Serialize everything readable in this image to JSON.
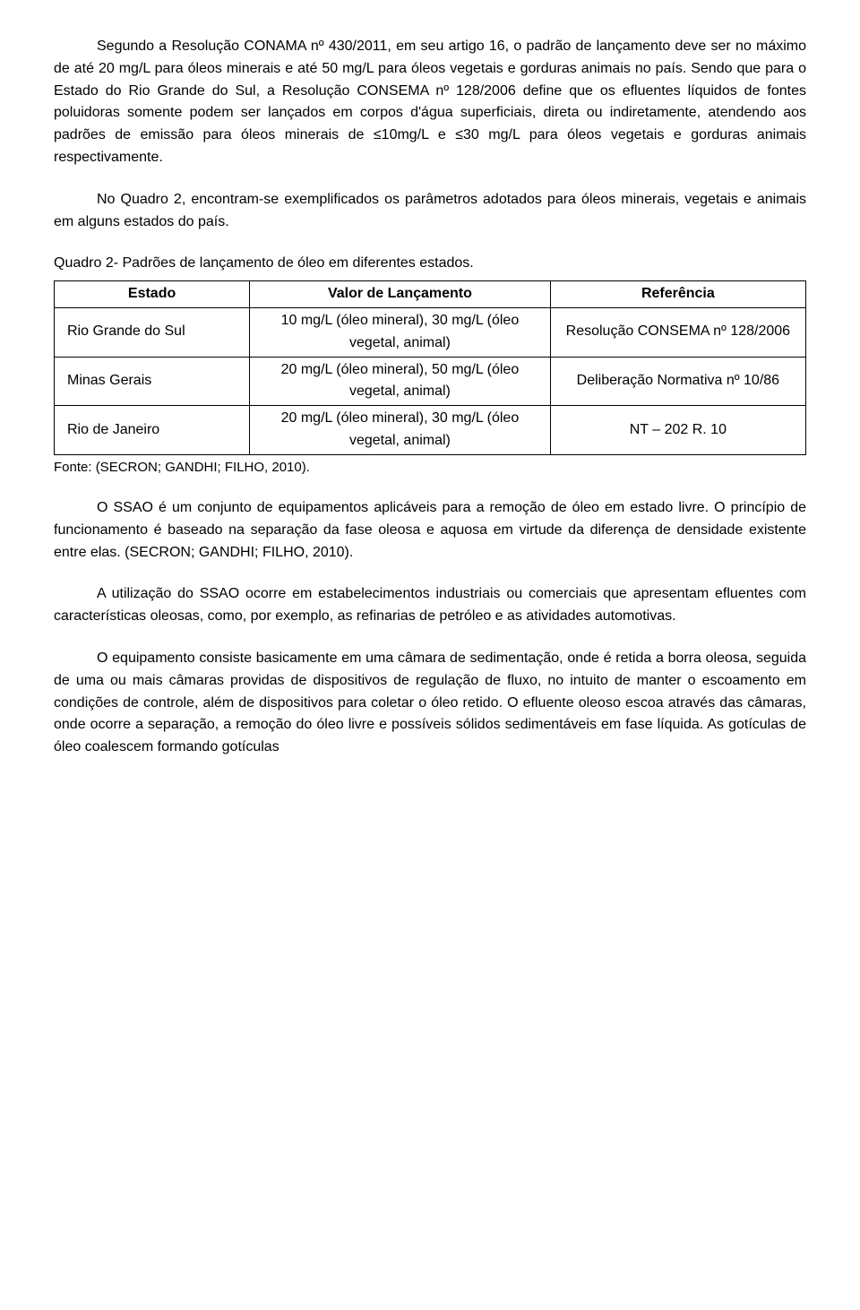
{
  "paragraphs": {
    "p1": "Segundo a Resolução CONAMA nº 430/2011, em seu artigo 16, o padrão de lançamento deve ser no máximo de até 20 mg/L para óleos minerais e até 50 mg/L para óleos vegetais e gorduras animais no país. Sendo que para o Estado do Rio Grande do Sul, a Resolução CONSEMA nº 128/2006 define que os efluentes líquidos de fontes poluidoras somente podem ser lançados em corpos d'água superficiais, direta ou indiretamente, atendendo aos padrões de emissão para óleos minerais de ≤10mg/L e ≤30 mg/L para óleos vegetais e gorduras animais respectivamente.",
    "p2": "No Quadro 2, encontram-se exemplificados os parâmetros adotados para óleos minerais, vegetais e animais em alguns estados do país.",
    "p3": "O SSAO é um conjunto de equipamentos aplicáveis para a remoção de óleo em estado livre. O princípio de funcionamento é baseado na separação da fase oleosa e aquosa em virtude da diferença de densidade existente entre elas. (SECRON; GANDHI; FILHO, 2010).",
    "p4": "A utilização do SSAO ocorre em estabelecimentos industriais ou comerciais que apresentam efluentes com características oleosas, como, por exemplo, as refinarias de petróleo e as atividades automotivas.",
    "p5": "O equipamento consiste basicamente em uma câmara de sedimentação, onde é retida a borra oleosa, seguida de uma ou mais câmaras providas de dispositivos de regulação de fluxo, no intuito de manter o escoamento em condições de controle, além de dispositivos para coletar o óleo retido. O efluente oleoso escoa através das câmaras, onde ocorre a separação, a remoção do óleo livre e possíveis sólidos sedimentáveis em fase líquida. As gotículas de óleo coalescem formando gotículas"
  },
  "table": {
    "caption": "Quadro 2- Padrões de lançamento de óleo em diferentes estados.",
    "headers": [
      "Estado",
      "Valor de Lançamento",
      "Referência"
    ],
    "rows": [
      {
        "estado": "Rio Grande do Sul",
        "valor": "10 mg/L (óleo mineral), 30 mg/L (óleo vegetal, animal)",
        "ref": "Resolução CONSEMA nº 128/2006"
      },
      {
        "estado": "Minas Gerais",
        "valor": "20 mg/L (óleo mineral), 50 mg/L (óleo vegetal, animal)",
        "ref": "Deliberação Normativa nº 10/86"
      },
      {
        "estado": "Rio de Janeiro",
        "valor": "20 mg/L (óleo mineral), 30 mg/L (óleo vegetal, animal)",
        "ref": "NT – 202 R. 10"
      }
    ],
    "source": "Fonte: (SECRON; GANDHI; FILHO, 2010)."
  }
}
